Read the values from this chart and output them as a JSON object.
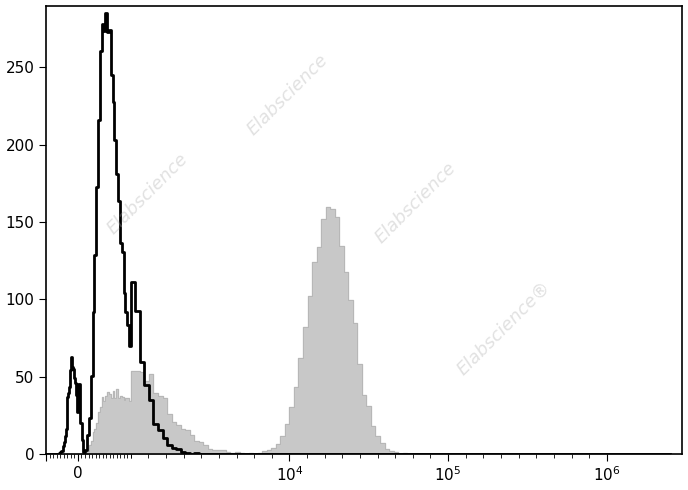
{
  "title": "",
  "xlabel": "",
  "ylabel": "",
  "ylim": [
    0,
    290
  ],
  "yticks": [
    0,
    50,
    100,
    150,
    200,
    250
  ],
  "background_color": "#ffffff",
  "black_hist_color": "black",
  "black_hist_lw": 2.0,
  "gray_hist_color": "#c8c8c8",
  "gray_hist_edge": "#b0b0b0",
  "watermark_color": "#aaaaaa",
  "watermark_alpha": 0.35,
  "watermark_fontsize": 13,
  "linthresh": 1000,
  "linscale": 0.3,
  "xlim_min": -600,
  "xlim_max": 3000000,
  "xtick_positions": [
    -600,
    0,
    10000,
    100000,
    1000000
  ],
  "xtick_labels": [
    "",
    "0",
    "10$^4$",
    "10$^5$",
    "10$^6$"
  ]
}
